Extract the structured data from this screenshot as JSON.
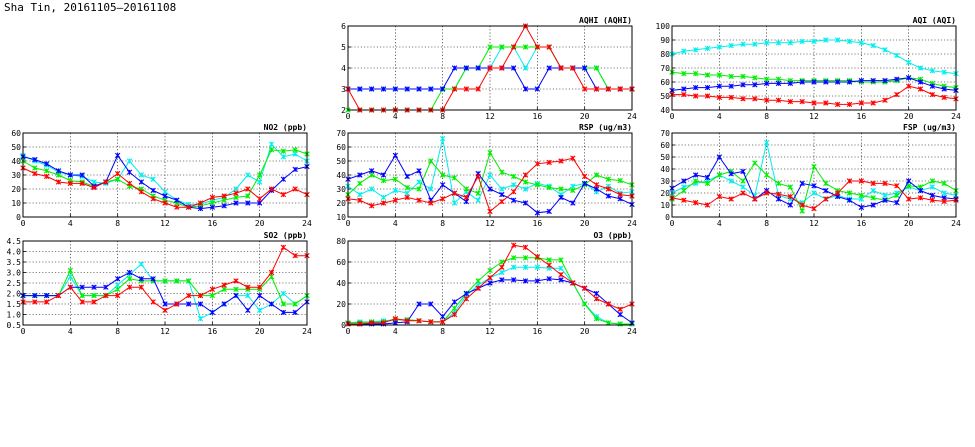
{
  "page": {
    "title": "Sha Tin, 20161105—20161108"
  },
  "colors": {
    "red": "#ff0000",
    "green": "#00ee00",
    "blue": "#0000ff",
    "cyan": "#00eeee"
  },
  "chart_data": [
    {
      "id": "aqhi",
      "type": "line",
      "title": "AQHI (AQHI)",
      "xlim": [
        0,
        24
      ],
      "ylim": [
        2,
        6
      ],
      "xticks": [
        0,
        4,
        8,
        12,
        16,
        20,
        24
      ],
      "yticks": [
        2,
        3,
        4,
        5,
        6
      ],
      "grid": true,
      "series": [
        {
          "color": "cyan",
          "values": [
            3,
            3,
            3,
            3,
            3,
            3,
            3,
            3,
            3,
            3,
            4,
            4,
            4,
            5,
            5,
            4,
            5,
            5,
            4,
            4,
            4,
            4,
            3,
            3,
            3
          ]
        },
        {
          "color": "green",
          "values": [
            2,
            2,
            2,
            2,
            2,
            2,
            2,
            2,
            3,
            3,
            4,
            4,
            5,
            5,
            5,
            5,
            5,
            5,
            4,
            4,
            4,
            4,
            3,
            3,
            3
          ]
        },
        {
          "color": "blue",
          "values": [
            3,
            3,
            3,
            3,
            3,
            3,
            3,
            3,
            3,
            4,
            4,
            4,
            4,
            4,
            4,
            3,
            3,
            4,
            4,
            4,
            4,
            3,
            3,
            3,
            3
          ]
        },
        {
          "color": "red",
          "values": [
            3,
            2,
            2,
            2,
            2,
            2,
            2,
            2,
            2,
            3,
            3,
            3,
            4,
            4,
            5,
            6,
            5,
            5,
            4,
            4,
            3,
            3,
            3,
            3,
            3
          ]
        }
      ]
    },
    {
      "id": "aqi",
      "type": "line",
      "title": "AQI (AQI)",
      "xlim": [
        0,
        24
      ],
      "ylim": [
        40,
        100
      ],
      "xticks": [
        0,
        4,
        8,
        12,
        16,
        20,
        24
      ],
      "yticks": [
        40,
        50,
        60,
        70,
        80,
        90,
        100
      ],
      "grid": true,
      "series": [
        {
          "color": "cyan",
          "values": [
            80,
            82,
            83,
            84,
            85,
            86,
            87,
            87,
            88,
            88,
            88,
            89,
            89,
            90,
            90,
            89,
            88,
            86,
            83,
            79,
            74,
            70,
            68,
            67,
            66
          ]
        },
        {
          "color": "green",
          "values": [
            67,
            66,
            66,
            65,
            65,
            64,
            64,
            63,
            62,
            62,
            61,
            61,
            61,
            61,
            61,
            61,
            60,
            60,
            60,
            61,
            63,
            62,
            59,
            57,
            56
          ]
        },
        {
          "color": "blue",
          "values": [
            54,
            55,
            56,
            56,
            57,
            57,
            58,
            58,
            59,
            59,
            59,
            60,
            60,
            60,
            60,
            60,
            61,
            61,
            61,
            62,
            63,
            60,
            57,
            55,
            54
          ]
        },
        {
          "color": "red",
          "values": [
            51,
            51,
            50,
            50,
            49,
            49,
            48,
            48,
            47,
            47,
            46,
            46,
            45,
            45,
            44,
            44,
            45,
            45,
            47,
            51,
            57,
            55,
            51,
            49,
            48
          ]
        }
      ]
    },
    {
      "id": "no2",
      "type": "line",
      "title": "NO2 (ppb)",
      "xlim": [
        0,
        24
      ],
      "ylim": [
        0,
        60
      ],
      "xticks": [
        0,
        4,
        8,
        12,
        16,
        20,
        24
      ],
      "yticks": [
        0,
        10,
        20,
        30,
        40,
        50,
        60
      ],
      "grid": true,
      "series": [
        {
          "color": "cyan",
          "values": [
            44,
            40,
            37,
            32,
            30,
            29,
            25,
            24,
            27,
            40,
            30,
            27,
            18,
            12,
            9,
            9,
            12,
            14,
            20,
            30,
            25,
            52,
            43,
            45,
            40
          ]
        },
        {
          "color": "green",
          "values": [
            40,
            35,
            33,
            30,
            26,
            25,
            22,
            25,
            27,
            22,
            20,
            15,
            12,
            10,
            7,
            8,
            10,
            12,
            14,
            15,
            30,
            48,
            47,
            48,
            45
          ]
        },
        {
          "color": "blue",
          "values": [
            43,
            41,
            38,
            33,
            30,
            30,
            22,
            25,
            44,
            32,
            25,
            19,
            15,
            12,
            7,
            6,
            7,
            8,
            10,
            10,
            10,
            19,
            27,
            34,
            36
          ]
        },
        {
          "color": "red",
          "values": [
            35,
            31,
            29,
            25,
            24,
            24,
            21,
            25,
            31,
            24,
            18,
            13,
            10,
            7,
            7,
            10,
            14,
            15,
            17,
            20,
            13,
            20,
            16,
            20,
            16
          ]
        }
      ]
    },
    {
      "id": "rsp",
      "type": "line",
      "title": "RSP (ug/m3)",
      "xlim": [
        0,
        24
      ],
      "ylim": [
        10,
        70
      ],
      "xticks": [
        0,
        4,
        8,
        12,
        16,
        20,
        24
      ],
      "yticks": [
        10,
        20,
        30,
        40,
        50,
        60,
        70
      ],
      "grid": true,
      "series": [
        {
          "color": "cyan",
          "values": [
            32,
            26,
            30,
            24,
            29,
            27,
            35,
            30,
            66,
            20,
            28,
            22,
            40,
            30,
            33,
            30,
            34,
            32,
            26,
            32,
            34,
            28,
            32,
            27,
            28
          ]
        },
        {
          "color": "green",
          "values": [
            26,
            34,
            40,
            36,
            37,
            31,
            30,
            50,
            40,
            38,
            30,
            27,
            56,
            42,
            39,
            35,
            33,
            31,
            30,
            29,
            33,
            40,
            37,
            36,
            33
          ]
        },
        {
          "color": "blue",
          "values": [
            37,
            40,
            43,
            40,
            54,
            39,
            43,
            22,
            33,
            27,
            21,
            41,
            30,
            26,
            22,
            20,
            13,
            14,
            24,
            20,
            34,
            30,
            25,
            23,
            19
          ]
        },
        {
          "color": "red",
          "values": [
            23,
            22,
            18,
            20,
            22,
            24,
            22,
            20,
            23,
            27,
            24,
            39,
            14,
            21,
            28,
            40,
            48,
            49,
            50,
            52,
            39,
            33,
            30,
            26,
            25
          ]
        }
      ]
    },
    {
      "id": "fsp",
      "type": "line",
      "title": "FSP (ug/m3)",
      "xlim": [
        0,
        24
      ],
      "ylim": [
        0,
        70
      ],
      "xticks": [
        0,
        4,
        8,
        12,
        16,
        20,
        24
      ],
      "yticks": [
        0,
        10,
        20,
        30,
        40,
        50,
        60,
        70
      ],
      "grid": true,
      "series": [
        {
          "color": "cyan",
          "values": [
            20,
            25,
            28,
            30,
            35,
            30,
            25,
            18,
            62,
            18,
            15,
            12,
            20,
            15,
            18,
            15,
            15,
            22,
            18,
            20,
            25,
            22,
            25,
            20,
            18
          ]
        },
        {
          "color": "green",
          "values": [
            15,
            22,
            30,
            28,
            35,
            38,
            30,
            45,
            35,
            28,
            25,
            5,
            42,
            28,
            22,
            20,
            18,
            16,
            14,
            18,
            26,
            25,
            30,
            28,
            22
          ]
        },
        {
          "color": "blue",
          "values": [
            24,
            30,
            35,
            33,
            50,
            36,
            38,
            15,
            22,
            15,
            10,
            28,
            26,
            22,
            17,
            14,
            8,
            10,
            14,
            12,
            30,
            22,
            18,
            16,
            15
          ]
        },
        {
          "color": "red",
          "values": [
            16,
            14,
            12,
            10,
            17,
            15,
            20,
            15,
            20,
            19,
            17,
            10,
            7,
            15,
            20,
            30,
            30,
            28,
            28,
            26,
            15,
            16,
            14,
            13,
            14
          ]
        }
      ]
    },
    {
      "id": "so2",
      "type": "line",
      "title": "SO2 (ppb)",
      "xlim": [
        0,
        24
      ],
      "ylim": [
        0.5,
        4.5
      ],
      "xticks": [
        0,
        4,
        8,
        12,
        16,
        20,
        24
      ],
      "yticks": [
        0.5,
        1.0,
        1.5,
        2.0,
        2.5,
        3.0,
        3.5,
        4.0,
        4.5
      ],
      "grid": true,
      "series": [
        {
          "color": "cyan",
          "values": [
            1.9,
            1.9,
            1.9,
            1.9,
            2.8,
            1.9,
            1.9,
            1.9,
            2.4,
            2.9,
            3.4,
            2.6,
            2.6,
            2.6,
            2.6,
            0.8,
            1.1,
            1.5,
            1.9,
            1.9,
            1.2,
            1.5,
            2.0,
            1.5,
            1.9
          ]
        },
        {
          "color": "green",
          "values": [
            1.9,
            1.9,
            1.9,
            1.9,
            3.1,
            1.9,
            1.9,
            1.9,
            2.2,
            2.7,
            2.6,
            2.6,
            2.6,
            2.6,
            2.6,
            1.9,
            1.9,
            2.2,
            2.2,
            2.2,
            2.2,
            2.8,
            1.5,
            1.5,
            1.9
          ]
        },
        {
          "color": "blue",
          "values": [
            1.9,
            1.9,
            1.9,
            1.9,
            2.3,
            2.3,
            2.3,
            2.3,
            2.7,
            3.0,
            2.7,
            2.7,
            1.5,
            1.5,
            1.5,
            1.5,
            1.1,
            1.5,
            1.9,
            1.2,
            1.9,
            1.5,
            1.1,
            1.1,
            1.6
          ]
        },
        {
          "color": "red",
          "values": [
            1.6,
            1.6,
            1.6,
            1.9,
            2.3,
            1.6,
            1.6,
            1.9,
            1.9,
            2.3,
            2.3,
            1.6,
            1.2,
            1.5,
            1.9,
            1.9,
            2.2,
            2.4,
            2.6,
            2.3,
            2.3,
            3.0,
            4.2,
            3.8,
            3.8
          ]
        }
      ]
    },
    {
      "id": "o3",
      "type": "line",
      "title": "O3 (ppb)",
      "xlim": [
        0,
        24
      ],
      "ylim": [
        0,
        80
      ],
      "xticks": [
        0,
        4,
        8,
        12,
        16,
        20,
        24
      ],
      "yticks": [
        0,
        20,
        40,
        60,
        80
      ],
      "grid": true,
      "series": [
        {
          "color": "cyan",
          "values": [
            2,
            3,
            3,
            4,
            5,
            5,
            4,
            3,
            3,
            12,
            28,
            38,
            45,
            50,
            55,
            55,
            55,
            54,
            54,
            40,
            20,
            8,
            2,
            1,
            1
          ]
        },
        {
          "color": "green",
          "values": [
            2,
            2,
            3,
            3,
            5,
            5,
            4,
            3,
            3,
            16,
            30,
            42,
            52,
            60,
            64,
            64,
            64,
            62,
            62,
            40,
            20,
            6,
            2,
            1,
            1
          ]
        },
        {
          "color": "blue",
          "values": [
            1,
            1,
            1,
            1,
            2,
            3,
            20,
            20,
            8,
            22,
            30,
            35,
            40,
            43,
            43,
            42,
            42,
            44,
            43,
            40,
            35,
            30,
            20,
            10,
            2
          ]
        },
        {
          "color": "red",
          "values": [
            1,
            1,
            2,
            2,
            6,
            4,
            4,
            3,
            3,
            10,
            25,
            35,
            45,
            55,
            76,
            74,
            65,
            57,
            48,
            40,
            35,
            25,
            20,
            15,
            20
          ]
        }
      ]
    }
  ]
}
